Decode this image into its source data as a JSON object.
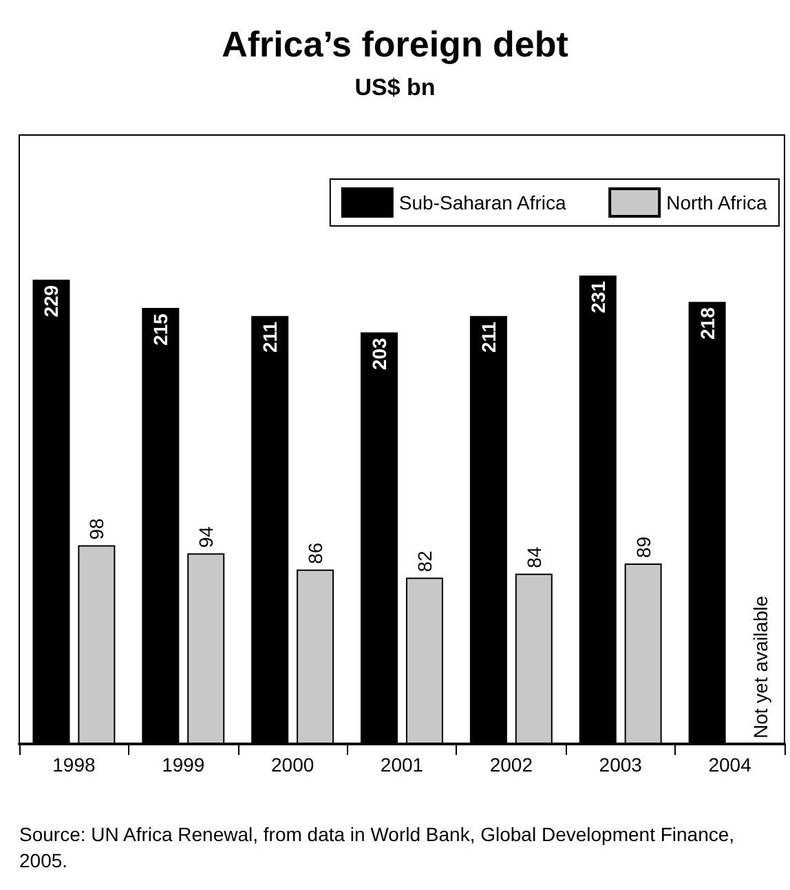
{
  "chart_data": {
    "type": "bar",
    "title": "Africa’s foreign debt",
    "subtitle": "US$ bn",
    "categories": [
      "1998",
      "1999",
      "2000",
      "2001",
      "2002",
      "2003",
      "2004"
    ],
    "series": [
      {
        "name": "Sub-Saharan Africa",
        "color": "#000000",
        "values": [
          229,
          215,
          211,
          203,
          211,
          231,
          218
        ]
      },
      {
        "name": "North Africa",
        "color": "#c8c8c8",
        "values": [
          98,
          94,
          86,
          82,
          84,
          89,
          null
        ]
      }
    ],
    "data_labels": true,
    "grid": false,
    "legend": "top right",
    "annotations": [
      {
        "text": "Not yet available",
        "x": "2004",
        "y": 0
      },
      "Source: UN Africa Renewal, from data in World Bank, Global Development Finance, 2005."
    ]
  }
}
